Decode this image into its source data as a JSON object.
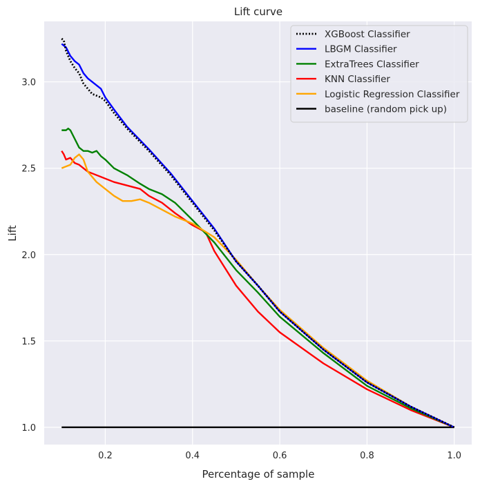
{
  "chart_data": {
    "type": "line",
    "title": "Lift curve",
    "xlabel": "Percentage of sample",
    "ylabel": "Lift",
    "xlim": [
      0.06,
      1.04
    ],
    "ylim": [
      0.9,
      3.35
    ],
    "xticks": [
      0.2,
      0.4,
      0.6,
      0.8,
      1.0
    ],
    "xtick_labels": [
      "0.2",
      "0.4",
      "0.6",
      "0.8",
      "1.0"
    ],
    "yticks": [
      1.0,
      1.5,
      2.0,
      2.5,
      3.0
    ],
    "ytick_labels": [
      "1.0",
      "1.5",
      "2.0",
      "2.5",
      "3.0"
    ],
    "grid": true,
    "legend_position": "top-right",
    "background": "#eaeaf2",
    "series": [
      {
        "name": "XGBoost Classifier",
        "color": "#000000",
        "dash": "dotted",
        "points": [
          [
            0.1,
            3.25
          ],
          [
            0.105,
            3.24
          ],
          [
            0.11,
            3.18
          ],
          [
            0.12,
            3.12
          ],
          [
            0.13,
            3.08
          ],
          [
            0.14,
            3.05
          ],
          [
            0.15,
            2.99
          ],
          [
            0.16,
            2.96
          ],
          [
            0.17,
            2.93
          ],
          [
            0.18,
            2.92
          ],
          [
            0.19,
            2.91
          ],
          [
            0.2,
            2.89
          ],
          [
            0.22,
            2.82
          ],
          [
            0.25,
            2.73
          ],
          [
            0.3,
            2.6
          ],
          [
            0.35,
            2.46
          ],
          [
            0.4,
            2.3
          ],
          [
            0.45,
            2.14
          ],
          [
            0.5,
            1.96
          ],
          [
            0.55,
            1.82
          ],
          [
            0.6,
            1.67
          ],
          [
            0.7,
            1.45
          ],
          [
            0.8,
            1.26
          ],
          [
            0.9,
            1.12
          ],
          [
            1.0,
            1.0
          ]
        ]
      },
      {
        "name": "LBGM Classifier",
        "color": "#0000ff",
        "dash": "solid",
        "points": [
          [
            0.1,
            3.22
          ],
          [
            0.11,
            3.2
          ],
          [
            0.12,
            3.15
          ],
          [
            0.13,
            3.12
          ],
          [
            0.14,
            3.1
          ],
          [
            0.15,
            3.05
          ],
          [
            0.16,
            3.02
          ],
          [
            0.17,
            3.0
          ],
          [
            0.18,
            2.98
          ],
          [
            0.19,
            2.96
          ],
          [
            0.2,
            2.91
          ],
          [
            0.22,
            2.84
          ],
          [
            0.25,
            2.74
          ],
          [
            0.3,
            2.61
          ],
          [
            0.35,
            2.47
          ],
          [
            0.4,
            2.31
          ],
          [
            0.45,
            2.15
          ],
          [
            0.5,
            1.96
          ],
          [
            0.55,
            1.82
          ],
          [
            0.6,
            1.67
          ],
          [
            0.7,
            1.45
          ],
          [
            0.8,
            1.26
          ],
          [
            0.9,
            1.12
          ],
          [
            1.0,
            1.0
          ]
        ]
      },
      {
        "name": "ExtraTrees Classifier",
        "color": "#008000",
        "dash": "solid",
        "points": [
          [
            0.1,
            2.72
          ],
          [
            0.11,
            2.72
          ],
          [
            0.115,
            2.73
          ],
          [
            0.12,
            2.72
          ],
          [
            0.13,
            2.67
          ],
          [
            0.14,
            2.62
          ],
          [
            0.15,
            2.6
          ],
          [
            0.16,
            2.6
          ],
          [
            0.17,
            2.59
          ],
          [
            0.18,
            2.6
          ],
          [
            0.19,
            2.57
          ],
          [
            0.2,
            2.55
          ],
          [
            0.22,
            2.5
          ],
          [
            0.25,
            2.46
          ],
          [
            0.28,
            2.41
          ],
          [
            0.3,
            2.38
          ],
          [
            0.33,
            2.35
          ],
          [
            0.36,
            2.3
          ],
          [
            0.4,
            2.2
          ],
          [
            0.45,
            2.07
          ],
          [
            0.5,
            1.91
          ],
          [
            0.55,
            1.78
          ],
          [
            0.6,
            1.64
          ],
          [
            0.7,
            1.43
          ],
          [
            0.8,
            1.24
          ],
          [
            0.9,
            1.11
          ],
          [
            1.0,
            1.0
          ]
        ]
      },
      {
        "name": "KNN Classifier",
        "color": "#ff0000",
        "dash": "solid",
        "points": [
          [
            0.1,
            2.6
          ],
          [
            0.105,
            2.58
          ],
          [
            0.11,
            2.55
          ],
          [
            0.12,
            2.56
          ],
          [
            0.13,
            2.53
          ],
          [
            0.14,
            2.52
          ],
          [
            0.15,
            2.5
          ],
          [
            0.16,
            2.48
          ],
          [
            0.17,
            2.47
          ],
          [
            0.18,
            2.46
          ],
          [
            0.2,
            2.44
          ],
          [
            0.22,
            2.42
          ],
          [
            0.25,
            2.4
          ],
          [
            0.28,
            2.38
          ],
          [
            0.3,
            2.34
          ],
          [
            0.33,
            2.3
          ],
          [
            0.36,
            2.24
          ],
          [
            0.4,
            2.17
          ],
          [
            0.43,
            2.13
          ],
          [
            0.45,
            2.02
          ],
          [
            0.5,
            1.82
          ],
          [
            0.55,
            1.67
          ],
          [
            0.6,
            1.55
          ],
          [
            0.7,
            1.37
          ],
          [
            0.8,
            1.22
          ],
          [
            0.9,
            1.1
          ],
          [
            1.0,
            1.0
          ]
        ]
      },
      {
        "name": "Logistic Regression Classifier",
        "color": "#ffa500",
        "dash": "solid",
        "points": [
          [
            0.1,
            2.5
          ],
          [
            0.11,
            2.51
          ],
          [
            0.12,
            2.52
          ],
          [
            0.13,
            2.56
          ],
          [
            0.14,
            2.58
          ],
          [
            0.15,
            2.55
          ],
          [
            0.16,
            2.48
          ],
          [
            0.17,
            2.45
          ],
          [
            0.18,
            2.42
          ],
          [
            0.2,
            2.38
          ],
          [
            0.22,
            2.34
          ],
          [
            0.24,
            2.31
          ],
          [
            0.26,
            2.31
          ],
          [
            0.28,
            2.32
          ],
          [
            0.3,
            2.3
          ],
          [
            0.33,
            2.26
          ],
          [
            0.36,
            2.22
          ],
          [
            0.4,
            2.18
          ],
          [
            0.45,
            2.1
          ],
          [
            0.5,
            1.97
          ],
          [
            0.55,
            1.82
          ],
          [
            0.6,
            1.68
          ],
          [
            0.7,
            1.46
          ],
          [
            0.8,
            1.27
          ],
          [
            0.9,
            1.12
          ],
          [
            1.0,
            1.0
          ]
        ]
      },
      {
        "name": "baseline (random pick up)",
        "color": "#000000",
        "dash": "solid",
        "points": [
          [
            0.1,
            1.0
          ],
          [
            1.0,
            1.0
          ]
        ]
      }
    ]
  }
}
